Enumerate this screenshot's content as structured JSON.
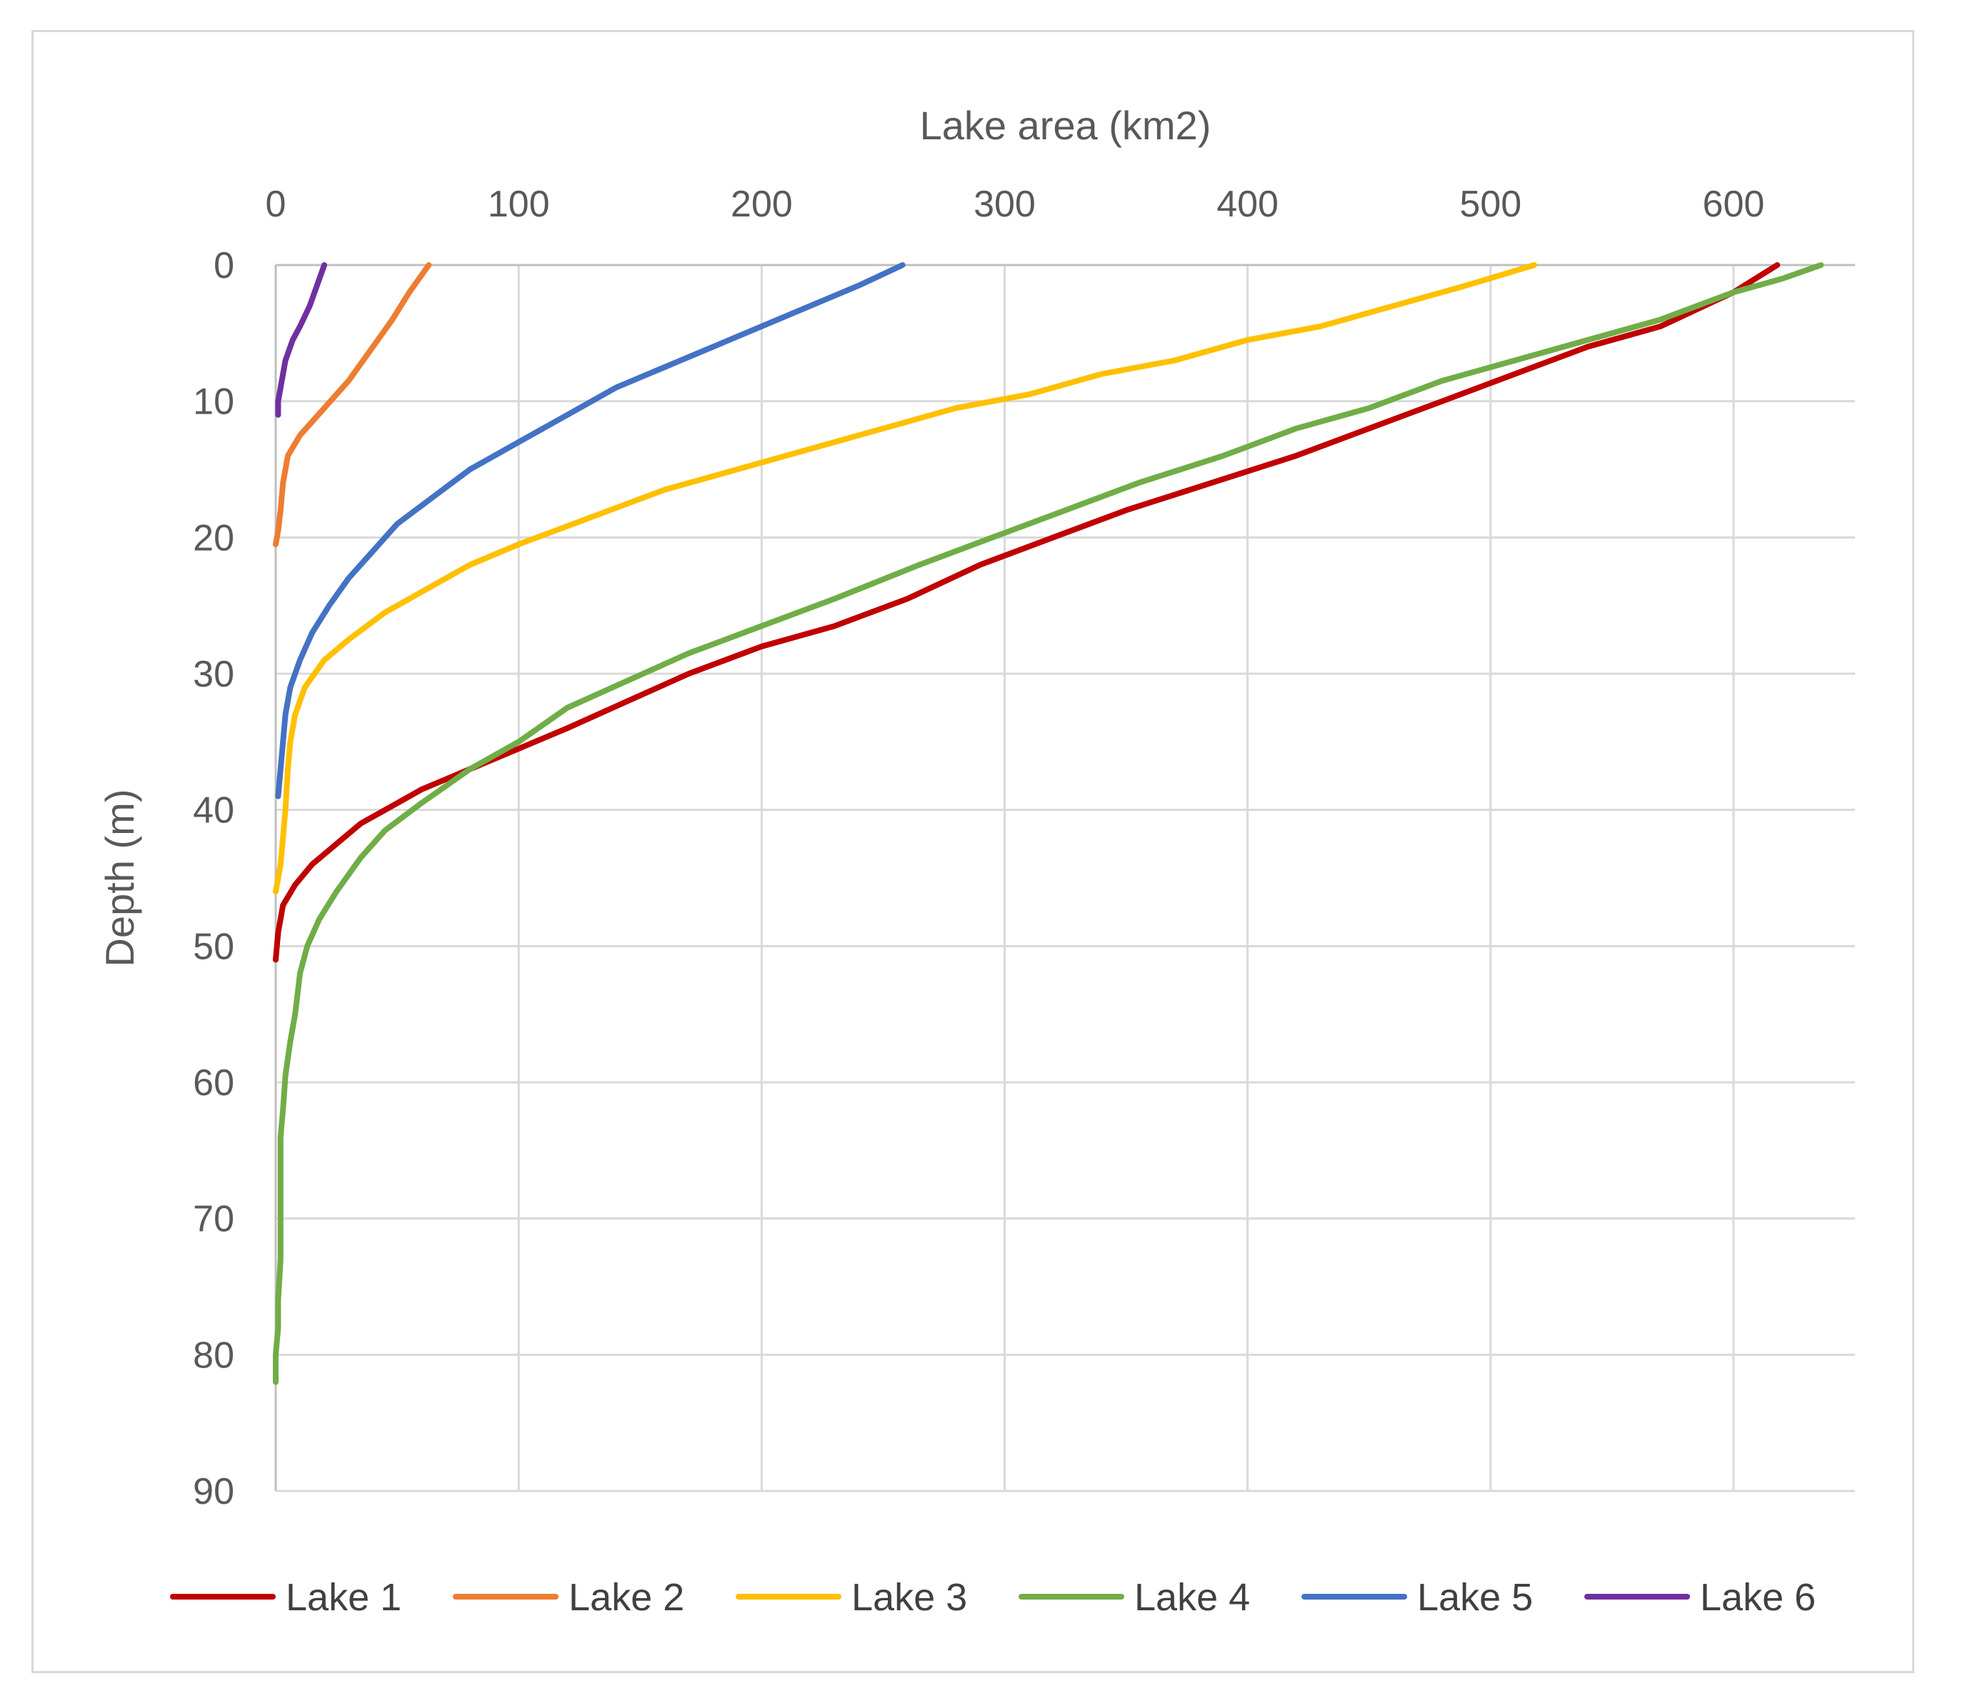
{
  "chart_data": {
    "type": "line",
    "title": "",
    "xlabel": "Lake area (km2)",
    "ylabel": "Depth (m)",
    "xlim": [
      0,
      650
    ],
    "ylim": [
      0,
      90
    ],
    "x_axis_position": "top",
    "y_axis_inverted": true,
    "x_ticks": [
      0,
      100,
      200,
      300,
      400,
      500,
      600
    ],
    "y_ticks": [
      0,
      10,
      20,
      30,
      40,
      50,
      60,
      70,
      80,
      90
    ],
    "grid": true,
    "legend_position": "bottom",
    "series": [
      {
        "name": "Lake 1",
        "color": "#C00000",
        "points": [
          [
            618,
            0
          ],
          [
            600,
            2
          ],
          [
            570,
            4.5
          ],
          [
            540,
            6
          ],
          [
            510,
            8
          ],
          [
            480,
            10
          ],
          [
            450,
            12
          ],
          [
            420,
            14
          ],
          [
            385,
            16
          ],
          [
            350,
            18
          ],
          [
            320,
            20
          ],
          [
            290,
            22
          ],
          [
            260,
            24.5
          ],
          [
            230,
            26.5
          ],
          [
            200,
            28
          ],
          [
            170,
            30
          ],
          [
            145,
            32
          ],
          [
            120,
            34
          ],
          [
            100,
            35.5
          ],
          [
            80,
            37
          ],
          [
            60,
            38.5
          ],
          [
            45,
            40
          ],
          [
            35,
            41
          ],
          [
            25,
            42.5
          ],
          [
            15,
            44
          ],
          [
            8,
            45.5
          ],
          [
            3,
            47
          ],
          [
            1,
            49
          ],
          [
            0,
            51
          ]
        ]
      },
      {
        "name": "Lake 2",
        "color": "#ED7D31",
        "points": [
          [
            63,
            0
          ],
          [
            55,
            2
          ],
          [
            48,
            4
          ],
          [
            40,
            6
          ],
          [
            30,
            8.5
          ],
          [
            20,
            10.5
          ],
          [
            10,
            12.5
          ],
          [
            5,
            14
          ],
          [
            3,
            16
          ],
          [
            2,
            18
          ],
          [
            1,
            19.5
          ],
          [
            0,
            20.5
          ]
        ]
      },
      {
        "name": "Lake 3",
        "color": "#FFC000",
        "points": [
          [
            518,
            0
          ],
          [
            490,
            1.5
          ],
          [
            460,
            3
          ],
          [
            430,
            4.5
          ],
          [
            400,
            5.5
          ],
          [
            370,
            7
          ],
          [
            340,
            8
          ],
          [
            310,
            9.5
          ],
          [
            280,
            10.5
          ],
          [
            250,
            12
          ],
          [
            220,
            13.5
          ],
          [
            190,
            15
          ],
          [
            160,
            16.5
          ],
          [
            130,
            18.5
          ],
          [
            100,
            20.5
          ],
          [
            80,
            22
          ],
          [
            60,
            24
          ],
          [
            45,
            25.5
          ],
          [
            30,
            27.5
          ],
          [
            20,
            29
          ],
          [
            12,
            31
          ],
          [
            8,
            33
          ],
          [
            6,
            35
          ],
          [
            5,
            37
          ],
          [
            4,
            40
          ],
          [
            3,
            42
          ],
          [
            2,
            44
          ],
          [
            0,
            46
          ]
        ]
      },
      {
        "name": "Lake 4",
        "color": "#70AD47",
        "points": [
          [
            636,
            0
          ],
          [
            620,
            1
          ],
          [
            600,
            2
          ],
          [
            570,
            4
          ],
          [
            540,
            5.5
          ],
          [
            510,
            7
          ],
          [
            480,
            8.5
          ],
          [
            450,
            10.5
          ],
          [
            420,
            12
          ],
          [
            390,
            14
          ],
          [
            355,
            16
          ],
          [
            325,
            18
          ],
          [
            295,
            20
          ],
          [
            265,
            22
          ],
          [
            230,
            24.5
          ],
          [
            200,
            26.5
          ],
          [
            170,
            28.5
          ],
          [
            145,
            30.5
          ],
          [
            120,
            32.5
          ],
          [
            100,
            35
          ],
          [
            80,
            37
          ],
          [
            60,
            39.5
          ],
          [
            45,
            41.5
          ],
          [
            35,
            43.5
          ],
          [
            25,
            46
          ],
          [
            18,
            48
          ],
          [
            13,
            50
          ],
          [
            10,
            52
          ],
          [
            8,
            55
          ],
          [
            6,
            57
          ],
          [
            4,
            59.5
          ],
          [
            3,
            62
          ],
          [
            2,
            64
          ],
          [
            2,
            67
          ],
          [
            2,
            70
          ],
          [
            2,
            73
          ],
          [
            1,
            76
          ],
          [
            1,
            78
          ],
          [
            0,
            80
          ],
          [
            0,
            82
          ]
        ]
      },
      {
        "name": "Lake 5",
        "color": "#4472C4",
        "points": [
          [
            258,
            0
          ],
          [
            240,
            1.5
          ],
          [
            220,
            3
          ],
          [
            200,
            4.5
          ],
          [
            180,
            6
          ],
          [
            160,
            7.5
          ],
          [
            140,
            9
          ],
          [
            125,
            10.5
          ],
          [
            110,
            12
          ],
          [
            95,
            13.5
          ],
          [
            80,
            15
          ],
          [
            65,
            17
          ],
          [
            50,
            19
          ],
          [
            40,
            21
          ],
          [
            30,
            23
          ],
          [
            22,
            25
          ],
          [
            15,
            27
          ],
          [
            10,
            29
          ],
          [
            6,
            31
          ],
          [
            4,
            33
          ],
          [
            3,
            35
          ],
          [
            2,
            37
          ],
          [
            1,
            39
          ]
        ]
      },
      {
        "name": "Lake 6",
        "color": "#7030A0",
        "points": [
          [
            20,
            0
          ],
          [
            17,
            1.5
          ],
          [
            14,
            3
          ],
          [
            10,
            4.5
          ],
          [
            7,
            5.5
          ],
          [
            4,
            7
          ],
          [
            3,
            8
          ],
          [
            2,
            9
          ],
          [
            1,
            10
          ],
          [
            1,
            11
          ]
        ]
      }
    ]
  }
}
